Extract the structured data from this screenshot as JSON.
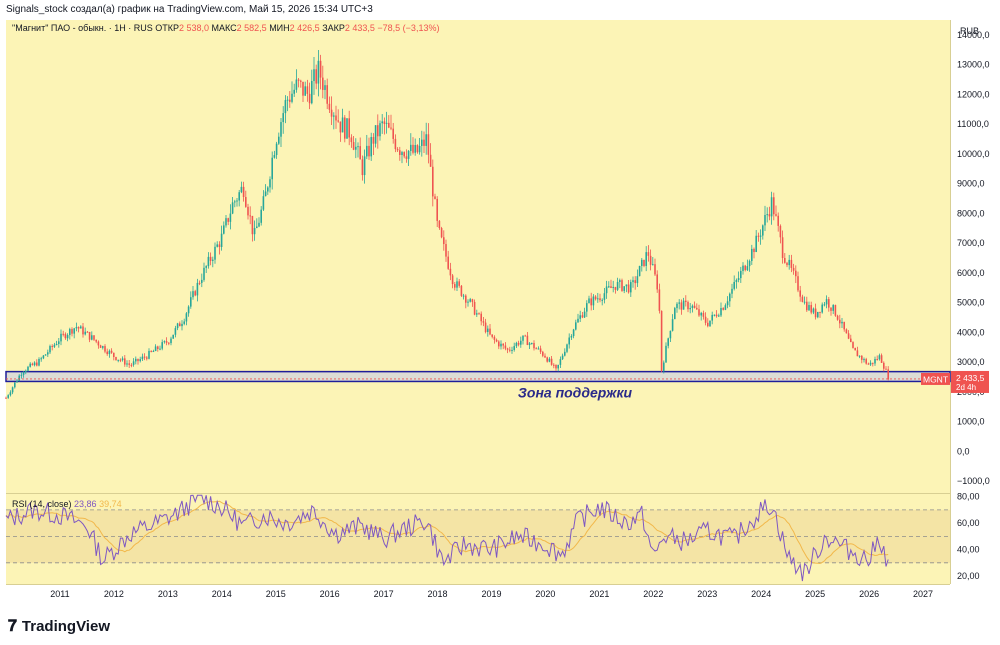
{
  "header": {
    "attribution": "Signals_stock создал(а) график на TradingView.com, Май 15, 2026 15:34 UTC+3",
    "symbol": "\"Магнит\" ПАО - обыкн. · 1Н · RUS",
    "open_label": "ОТКР",
    "open_value": "2 538,0",
    "high_label": "МАКС",
    "high_value": "2 582,5",
    "low_label": "МИН",
    "low_value": "2 426,5",
    "close_label": "ЗАКР",
    "close_value": "2 433,5",
    "change": "−78,5 (−3,13%)"
  },
  "price_axis": {
    "currency": "RUB"
  },
  "last_price": {
    "ticker": "MGNT",
    "value": "2 433,5",
    "countdown": "2d 4h"
  },
  "zone": {
    "label": "Зона поддержки",
    "low": 2350,
    "high": 2680
  },
  "rsi_label": {
    "name": "RSI (14, close)",
    "value1": "23,86",
    "value2": "39,74"
  },
  "branding": {
    "logo_text": "TradingView",
    "logo_icon": "tradingview-logo-icon"
  },
  "colors": {
    "panel_bg": "#fcf4b6",
    "zone_border": "#1e1e9a",
    "up": "#26a69a",
    "down": "#ef5350",
    "rsi_line": "#7e57c2",
    "rsi_ma": "#f2b84b"
  },
  "chart_data": [
    {
      "type": "line",
      "description_series": "close price approximation",
      "x": [
        2010.0,
        2010.3,
        2010.6,
        2011.0,
        2011.3,
        2011.6,
        2012.0,
        2012.3,
        2012.6,
        2013.0,
        2013.3,
        2013.6,
        2014.0,
        2014.2,
        2014.4,
        2014.6,
        2014.8,
        2015.0,
        2015.2,
        2015.4,
        2015.6,
        2015.8,
        2016.0,
        2016.2,
        2016.4,
        2016.6,
        2016.8,
        2017.0,
        2017.3,
        2017.6,
        2017.8,
        2018.0,
        2018.3,
        2018.6,
        2019.0,
        2019.3,
        2019.6,
        2020.0,
        2020.2,
        2020.5,
        2020.8,
        2021.0,
        2021.3,
        2021.6,
        2021.9,
        2022.1,
        2022.15,
        2022.4,
        2022.7,
        2023.0,
        2023.3,
        2023.6,
        2023.9,
        2024.2,
        2024.4,
        2024.6,
        2024.8,
        2025.0,
        2025.2,
        2025.4,
        2025.7,
        2026.0,
        2026.2,
        2026.37
      ],
      "y": [
        1800,
        2700,
        3000,
        3800,
        4200,
        3800,
        3200,
        2900,
        3200,
        3700,
        4500,
        5800,
        7200,
        8300,
        8900,
        7200,
        8500,
        10500,
        11800,
        12300,
        12000,
        12800,
        11800,
        11000,
        10700,
        9500,
        10500,
        11000,
        10200,
        10000,
        10500,
        7500,
        5700,
        5000,
        3800,
        3400,
        3800,
        3200,
        2700,
        4100,
        5000,
        5200,
        5600,
        5500,
        6700,
        5400,
        2700,
        4900,
        4900,
        4300,
        4900,
        5900,
        7000,
        8400,
        6700,
        5900,
        5000,
        4600,
        5100,
        4600,
        3400,
        2900,
        3200,
        2433.5
      ],
      "xlim": [
        2010.0,
        2027.5
      ],
      "ylim": [
        -1400,
        14500
      ],
      "xticks": [
        "2011",
        "2012",
        "2013",
        "2014",
        "2015",
        "2016",
        "2017",
        "2018",
        "2019",
        "2020",
        "2021",
        "2022",
        "2023",
        "2024",
        "2025",
        "2026",
        "2027"
      ],
      "yticks": [
        "−1000,0",
        "0,0",
        "1000,0",
        "2000,0",
        "3000,0",
        "4000,0",
        "5000,0",
        "6000,0",
        "7000,0",
        "8000,0",
        "9000,0",
        "10000,0",
        "11000,0",
        "12000,0",
        "13000,0",
        "14000,0"
      ]
    },
    {
      "type": "line",
      "x": [
        2010.0,
        2010.5,
        2011.0,
        2011.5,
        2011.8,
        2012.3,
        2012.8,
        2013.2,
        2013.6,
        2014.0,
        2014.4,
        2014.8,
        2015.2,
        2015.7,
        2016.1,
        2016.6,
        2017.0,
        2017.4,
        2017.8,
        2018.1,
        2018.5,
        2019.0,
        2019.5,
        2020.0,
        2020.3,
        2020.6,
        2021.0,
        2021.5,
        2021.8,
        2022.0,
        2022.2,
        2022.6,
        2023.0,
        2023.5,
        2024.0,
        2024.2,
        2024.5,
        2024.8,
        2025.2,
        2025.6,
        2026.0,
        2026.2,
        2026.37
      ],
      "y": [
        62,
        70,
        66,
        58,
        32,
        52,
        60,
        68,
        80,
        72,
        58,
        66,
        60,
        70,
        52,
        58,
        48,
        56,
        62,
        30,
        44,
        40,
        50,
        44,
        36,
        62,
        72,
        60,
        66,
        34,
        50,
        46,
        54,
        48,
        70,
        74,
        34,
        22,
        50,
        40,
        32,
        50,
        23.86
      ],
      "ylim": [
        14,
        82
      ],
      "yticks": [
        "20,00",
        "40,00",
        "60,00",
        "80,00"
      ],
      "levels": [
        30,
        50,
        70
      ]
    }
  ]
}
